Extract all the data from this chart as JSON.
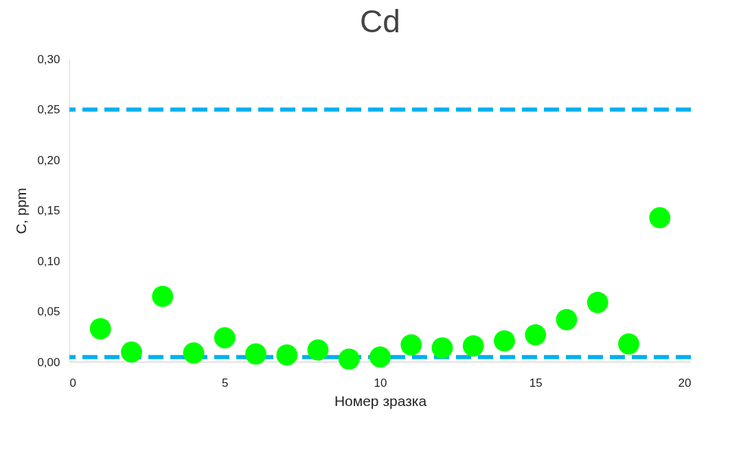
{
  "chart_data": {
    "type": "scatter",
    "title": "Cd",
    "xlabel": "Номер зразка",
    "ylabel": "C, ppm",
    "x": [
      1,
      2,
      3,
      4,
      5,
      6,
      7,
      8,
      9,
      10,
      11,
      12,
      13,
      14,
      15,
      16,
      17,
      18,
      19
    ],
    "series": [
      {
        "color": "#00ff00",
        "values": [
          0.033,
          0.01,
          0.065,
          0.009,
          0.024,
          0.008,
          0.007,
          0.012,
          0.003,
          0.005,
          0.017,
          0.014,
          0.016,
          0.021,
          0.027,
          0.042,
          0.059,
          0.018,
          0.143
        ]
      }
    ],
    "xlim": [
      0,
      20
    ],
    "xticks": [
      0,
      5,
      10,
      15,
      20
    ],
    "ylim": [
      0,
      0.3
    ],
    "yticks": [
      {
        "value": 0,
        "label": "0,00"
      },
      {
        "value": 0.05,
        "label": "0,05"
      },
      {
        "value": 0.1,
        "label": "0,10"
      },
      {
        "value": 0.15,
        "label": "0,15"
      },
      {
        "value": 0.2,
        "label": "0,20"
      },
      {
        "value": 0.25,
        "label": "0,25"
      },
      {
        "value": 0.3,
        "label": "0,30"
      }
    ],
    "ref_lines": [
      {
        "axis": "y",
        "value": 0.25,
        "color": "#00b0f0",
        "line_style": "dashed"
      },
      {
        "axis": "y",
        "value": 0.005,
        "color": "#00b0f0",
        "line_style": "dashed"
      }
    ],
    "marker": "circle",
    "grid": false,
    "legend": false
  }
}
